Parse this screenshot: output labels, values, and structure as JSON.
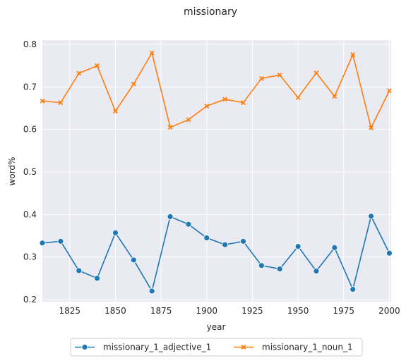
{
  "chart_data": {
    "type": "line",
    "title": "missionary",
    "xlabel": "year",
    "ylabel": "word%",
    "x": [
      1810,
      1820,
      1830,
      1840,
      1850,
      1860,
      1870,
      1880,
      1890,
      1900,
      1910,
      1920,
      1930,
      1940,
      1950,
      1960,
      1970,
      1980,
      1990,
      2000
    ],
    "xlim": [
      1810,
      2001
    ],
    "ylim": [
      0.195,
      0.81
    ],
    "xticks": [
      "1825",
      "1850",
      "1875",
      "1900",
      "1925",
      "1950",
      "1975",
      "2000"
    ],
    "yticks": [
      "0.2",
      "0.3",
      "0.4",
      "0.5",
      "0.6",
      "0.7",
      "0.8"
    ],
    "grid": true,
    "legend_position": "bottom-center",
    "series": [
      {
        "name": "missionary_1_adjective_1",
        "color": "#1f77b4",
        "marker": "circle",
        "values": [
          0.333,
          0.337,
          0.268,
          0.25,
          0.357,
          0.293,
          0.22,
          0.395,
          0.377,
          0.345,
          0.329,
          0.337,
          0.28,
          0.272,
          0.325,
          0.267,
          0.322,
          0.224,
          0.396,
          0.309
        ]
      },
      {
        "name": "missionary_1_noun_1",
        "color": "#ff7f0e",
        "marker": "x",
        "values": [
          0.667,
          0.663,
          0.732,
          0.75,
          0.643,
          0.707,
          0.78,
          0.605,
          0.623,
          0.655,
          0.671,
          0.663,
          0.72,
          0.728,
          0.675,
          0.733,
          0.678,
          0.776,
          0.604,
          0.691
        ]
      }
    ]
  }
}
